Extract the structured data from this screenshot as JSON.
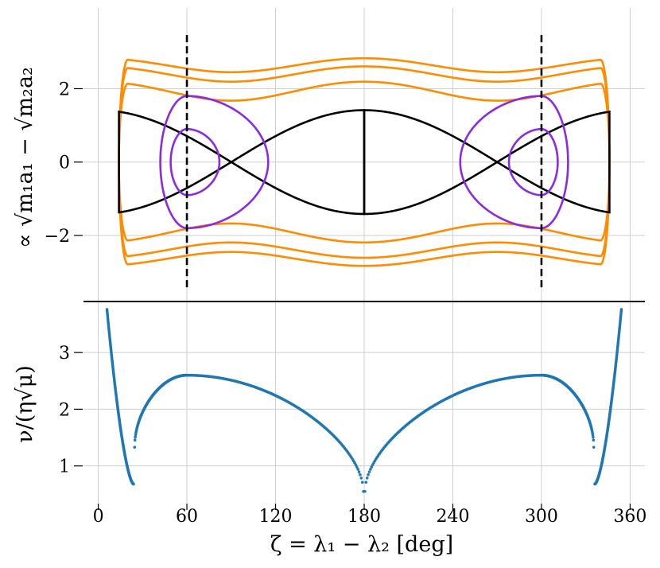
{
  "chart_data": [
    {
      "type": "line",
      "panel": "top",
      "ylabel": "∝ √m₁a₁ − √m₂a₂",
      "xlim": [
        -10,
        370
      ],
      "ylim": [
        -3.8,
        4.2
      ],
      "xticks": [
        0,
        60,
        120,
        180,
        240,
        300,
        360
      ],
      "yticks": [
        -2,
        0,
        2
      ],
      "ytick_labels": [
        "−2",
        "0",
        "2"
      ],
      "grid": true,
      "curve_model": "y = ±sqrt(2*(E + (1 + cos(2ζ))/2)) with ζ in degrees",
      "series": [
        {
          "kind": "circulating",
          "color": "#ff8c00",
          "energies": [
            3.0,
            2.4,
            1.4
          ]
        },
        {
          "kind": "separatrix",
          "color": "#000000",
          "energies": [
            0.0
          ]
        },
        {
          "kind": "librating",
          "color": "#8a2be2",
          "energies": [
            -0.6,
            -0.93
          ]
        }
      ],
      "vlines": [
        {
          "x": 60,
          "ymin": -3.46,
          "ymax": 3.46,
          "style": "dashed",
          "color": "#000000"
        },
        {
          "x": 300,
          "ymin": -3.46,
          "ymax": 3.46,
          "style": "dashed",
          "color": "#000000"
        }
      ]
    },
    {
      "type": "scatter",
      "panel": "bottom",
      "xlabel": "ζ = λ₁ − λ₂ [deg]",
      "ylabel": "ν/(η√μ)",
      "xlim": [
        -10,
        370
      ],
      "ylim": [
        0.35,
        3.9
      ],
      "xticks": [
        0,
        60,
        120,
        180,
        240,
        300,
        360
      ],
      "yticks": [
        1,
        2,
        3
      ],
      "grid": true,
      "color": "#1f77b4",
      "segments": [
        {
          "x_start": 5.9,
          "x_end": 23.9,
          "y_start": 3.76,
          "y_end": 0.68
        },
        {
          "x_start": 24.6,
          "x_end": 60,
          "y_start": 1.33,
          "y_end": 2.6
        },
        {
          "x_start": 60,
          "x_end": 179.5,
          "y_start": 2.6,
          "y_end": 0.55
        },
        {
          "x_start": 180.5,
          "x_end": 300,
          "y_start": 0.55,
          "y_end": 2.6
        },
        {
          "x_start": 300,
          "x_end": 335.4,
          "y_start": 2.6,
          "y_end": 1.33
        },
        {
          "x_start": 336.1,
          "x_end": 354.1,
          "y_start": 0.68,
          "y_end": 3.76
        }
      ]
    }
  ]
}
